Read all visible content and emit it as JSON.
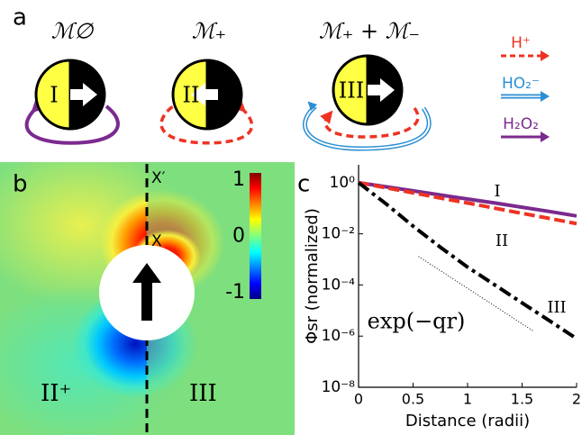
{
  "panel_a": {
    "label": "a",
    "motors": [
      {
        "title": "ℳ∅",
        "numeral": "I"
      },
      {
        "title": "ℳ₊",
        "numeral": "II"
      },
      {
        "title": "ℳ₊ + ℳ₋",
        "numeral": "III"
      }
    ],
    "legend": [
      {
        "label": "H⁺",
        "color": "#ee3322"
      },
      {
        "label": "HO₂⁻",
        "color": "#2a8fd4"
      },
      {
        "label": "H₂O₂",
        "color": "#7b2a8e"
      }
    ]
  },
  "panel_b": {
    "label": "b",
    "top_label": "X′",
    "mid_label": "X",
    "left_label": "II⁺",
    "right_label": "III",
    "colorbar_ticks": [
      1,
      0,
      -1
    ]
  },
  "chart_data": {
    "type": "line",
    "panel_label": "c",
    "xlabel": "Distance (radii)",
    "ylabel": "Φsr (normalized)",
    "x": [
      0,
      0.25,
      0.5,
      0.75,
      1,
      1.25,
      1.5,
      1.75,
      2
    ],
    "series": [
      {
        "name": "I",
        "color": "#7b2a8e",
        "dash": "solid",
        "values": [
          1,
          0.69,
          0.48,
          0.33,
          0.23,
          0.16,
          0.11,
          0.075,
          0.05
        ]
      },
      {
        "name": "II",
        "color": "#ee3322",
        "dash": "dashed",
        "values": [
          1,
          0.63,
          0.4,
          0.25,
          0.16,
          0.1,
          0.063,
          0.04,
          0.025
        ]
      },
      {
        "name": "III",
        "color": "#000000",
        "dash": "dashdot",
        "values": [
          1,
          0.15,
          0.02,
          0.003,
          0.0005,
          0.0001,
          2e-05,
          4e-06,
          8e-07
        ]
      },
      {
        "name": "exp(−qr)",
        "color": "#000000",
        "dash": "dotted",
        "x": [
          0.55,
          1.6
        ],
        "values": [
          0.0013,
          1.6e-06
        ]
      }
    ],
    "log_y": true,
    "xlim": [
      0,
      2
    ],
    "ylim": [
      1e-08,
      5
    ],
    "xticks": [
      0,
      0.5,
      1,
      1.5,
      2
    ],
    "yticks": [
      {
        "value": 1,
        "label": "10⁰"
      },
      {
        "value": 0.01,
        "label": "10⁻²"
      },
      {
        "value": 0.0001,
        "label": "10⁻⁴"
      },
      {
        "value": 1e-06,
        "label": "10⁻⁶"
      },
      {
        "value": 1e-08,
        "label": "10⁻⁸"
      }
    ]
  }
}
